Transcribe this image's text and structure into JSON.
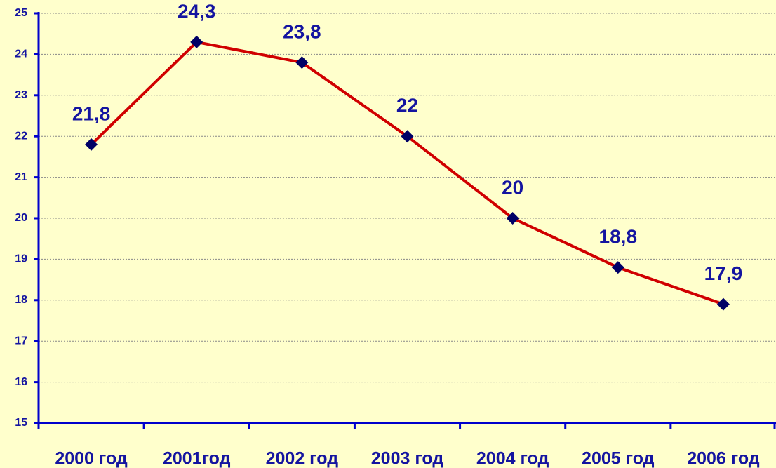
{
  "chart_data": {
    "type": "line",
    "categories": [
      "2000 год",
      "2001год",
      "2002 год",
      "2003 год",
      "2004 год",
      "2005 год",
      "2006 год"
    ],
    "values": [
      21.8,
      24.3,
      23.8,
      22,
      20,
      18.8,
      17.9
    ],
    "value_labels": [
      "21,8",
      "24,3",
      "23,8",
      "22",
      "20",
      "18,8",
      "17,9"
    ],
    "color": "#d00000",
    "marker_color": "#000066",
    "ylim": [
      15,
      25
    ],
    "yticks": [
      15,
      16,
      17,
      18,
      19,
      20,
      21,
      22,
      23,
      24,
      25
    ],
    "grid": true
  }
}
